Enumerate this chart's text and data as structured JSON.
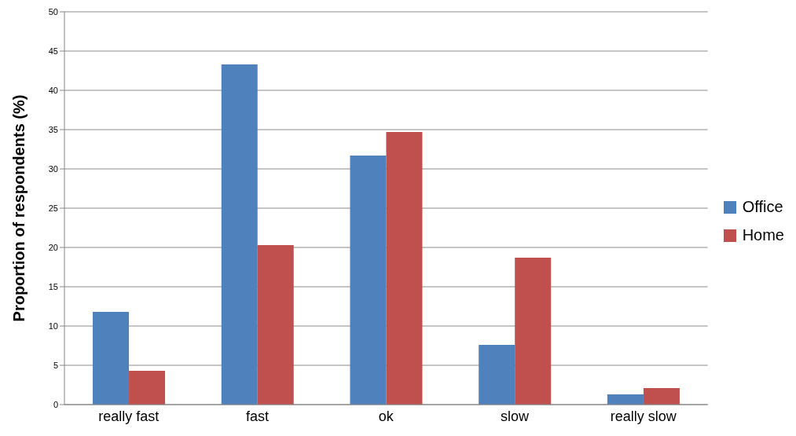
{
  "chart_data": {
    "type": "bar",
    "ylabel": "Proportion of respondents (%)",
    "categories": [
      "really fast",
      "fast",
      "ok",
      "slow",
      "really slow"
    ],
    "series": [
      {
        "name": "Office",
        "color": "#4f81bd",
        "values": [
          11.8,
          43.3,
          31.7,
          7.6,
          1.3
        ]
      },
      {
        "name": "Home",
        "color": "#c0504d",
        "values": [
          4.3,
          20.3,
          34.7,
          18.7,
          2.1
        ]
      }
    ],
    "ylim": [
      0,
      50
    ],
    "yticks": [
      0,
      5,
      10,
      15,
      20,
      25,
      30,
      35,
      40,
      45,
      50
    ],
    "grid": "y",
    "legend": "right"
  }
}
